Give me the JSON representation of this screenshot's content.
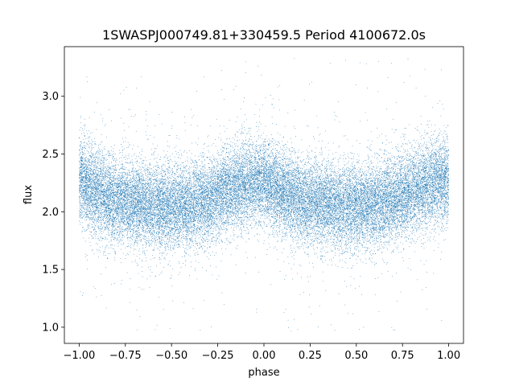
{
  "chart_data": {
    "type": "scatter",
    "title": "1SWASPJ000749.81+330459.5 Period 4100672.0s",
    "xlabel": "phase",
    "ylabel": "flux",
    "xlim": [
      -1.08,
      1.08
    ],
    "ylim": [
      0.86,
      3.43
    ],
    "xticks": [
      -1.0,
      -0.75,
      -0.5,
      -0.25,
      0.0,
      0.25,
      0.5,
      0.75,
      1.0
    ],
    "xtick_labels": [
      "−1.00",
      "−0.75",
      "−0.50",
      "−0.25",
      "0.00",
      "0.25",
      "0.50",
      "0.75",
      "1.00"
    ],
    "yticks": [
      1.0,
      1.5,
      2.0,
      2.5,
      3.0
    ],
    "ytick_labels": [
      "1.0",
      "1.5",
      "2.0",
      "2.5",
      "3.0"
    ],
    "grid": false,
    "legend": "none",
    "marker_color": "#1f77b4",
    "profile": {
      "phase": [
        0.0,
        0.1,
        0.2,
        0.3,
        0.4,
        0.5,
        0.6,
        0.7,
        0.8,
        0.9,
        1.0
      ],
      "flux": [
        2.28,
        2.16,
        2.09,
        2.08,
        2.05,
        2.04,
        2.06,
        2.1,
        2.18,
        2.25,
        2.28
      ],
      "scatter": 0.18
    },
    "flux_range": [
      0.96,
      3.33
    ],
    "point_count": 30000
  }
}
